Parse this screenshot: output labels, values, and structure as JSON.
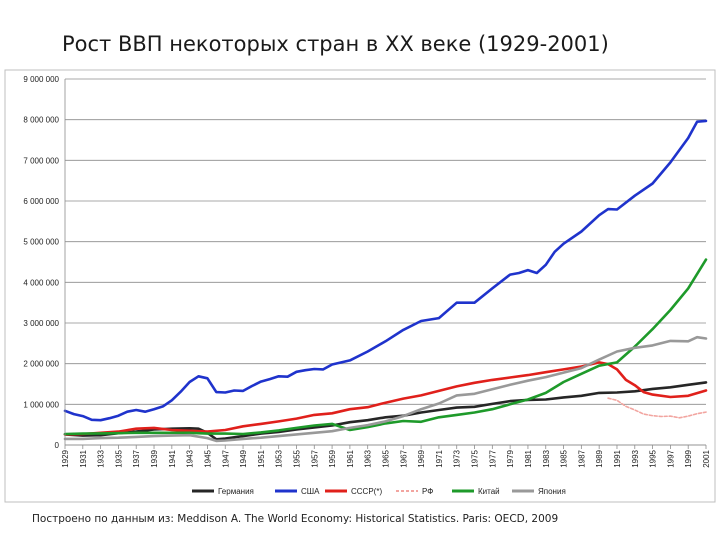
{
  "slide": {
    "title": "Рост ВВП некоторых стран в XX веке (1929-2001)",
    "source": "Построено по данным из: Meddison A. The World Economy: Historical Statistics. Paris: OECD, 2009"
  },
  "chart_data": {
    "type": "line",
    "title": "",
    "xlabel": "",
    "ylabel": "",
    "ylim": [
      0,
      9000000
    ],
    "yticks": [
      0,
      1000000,
      2000000,
      3000000,
      4000000,
      5000000,
      6000000,
      7000000,
      8000000,
      9000000
    ],
    "ytick_labels": [
      "0",
      "1 000 000",
      "2 000 000",
      "3 000 000",
      "4 000 000",
      "5 000 000",
      "6 000 000",
      "7 000 000",
      "8 000 000",
      "9 000 000"
    ],
    "xlim": [
      1929,
      2001
    ],
    "xticks": [
      1929,
      1931,
      1933,
      1935,
      1937,
      1939,
      1941,
      1943,
      1945,
      1947,
      1949,
      1951,
      1953,
      1955,
      1957,
      1959,
      1961,
      1963,
      1965,
      1967,
      1969,
      1971,
      1973,
      1975,
      1977,
      1979,
      1981,
      1983,
      1985,
      1987,
      1989,
      1991,
      1993,
      1995,
      1997,
      1999,
      2001
    ],
    "xtick_labels": [
      "1929",
      "1931",
      "1933",
      "1935",
      "1937",
      "1939",
      "1941",
      "1943",
      "1945",
      "1947",
      "1949",
      "1951",
      "1953",
      "1955",
      "1957",
      "1959",
      "1961",
      "1963",
      "1965",
      "1967",
      "1969",
      "1971",
      "1973",
      "1975",
      "1977",
      "1979",
      "1981",
      "1983",
      "1985",
      "1987",
      "1989",
      "1991",
      "1993",
      "1995",
      "1997",
      "1999",
      "2001"
    ],
    "grid": {
      "horizontal": true,
      "vertical": false
    },
    "legend_position": "bottom",
    "series": [
      {
        "name": "Германия",
        "color": "#262626",
        "dash": "solid",
        "points": [
          [
            1929,
            260000
          ],
          [
            1931,
            230000
          ],
          [
            1933,
            240000
          ],
          [
            1935,
            290000
          ],
          [
            1937,
            330000
          ],
          [
            1939,
            380000
          ],
          [
            1941,
            400000
          ],
          [
            1943,
            410000
          ],
          [
            1944,
            400000
          ],
          [
            1945,
            300000
          ],
          [
            1946,
            140000
          ],
          [
            1947,
            160000
          ],
          [
            1949,
            220000
          ],
          [
            1951,
            280000
          ],
          [
            1953,
            320000
          ],
          [
            1955,
            380000
          ],
          [
            1957,
            430000
          ],
          [
            1959,
            480000
          ],
          [
            1961,
            560000
          ],
          [
            1963,
            610000
          ],
          [
            1965,
            680000
          ],
          [
            1967,
            720000
          ],
          [
            1969,
            800000
          ],
          [
            1971,
            860000
          ],
          [
            1973,
            920000
          ],
          [
            1975,
            940000
          ],
          [
            1977,
            1010000
          ],
          [
            1979,
            1080000
          ],
          [
            1981,
            1110000
          ],
          [
            1983,
            1120000
          ],
          [
            1985,
            1170000
          ],
          [
            1987,
            1210000
          ],
          [
            1989,
            1280000
          ],
          [
            1991,
            1290000
          ],
          [
            1993,
            1320000
          ],
          [
            1995,
            1380000
          ],
          [
            1997,
            1420000
          ],
          [
            1999,
            1480000
          ],
          [
            2001,
            1540000
          ]
        ]
      },
      {
        "name": "США",
        "color": "#1f33cc",
        "dash": "solid",
        "points": [
          [
            1929,
            840000
          ],
          [
            1930,
            760000
          ],
          [
            1931,
            710000
          ],
          [
            1932,
            620000
          ],
          [
            1933,
            610000
          ],
          [
            1934,
            660000
          ],
          [
            1935,
            720000
          ],
          [
            1936,
            820000
          ],
          [
            1937,
            860000
          ],
          [
            1938,
            820000
          ],
          [
            1939,
            880000
          ],
          [
            1940,
            950000
          ],
          [
            1941,
            1100000
          ],
          [
            1942,
            1310000
          ],
          [
            1943,
            1550000
          ],
          [
            1944,
            1690000
          ],
          [
            1945,
            1640000
          ],
          [
            1946,
            1300000
          ],
          [
            1947,
            1290000
          ],
          [
            1948,
            1340000
          ],
          [
            1949,
            1330000
          ],
          [
            1950,
            1450000
          ],
          [
            1951,
            1560000
          ],
          [
            1952,
            1620000
          ],
          [
            1953,
            1690000
          ],
          [
            1954,
            1680000
          ],
          [
            1955,
            1800000
          ],
          [
            1956,
            1840000
          ],
          [
            1957,
            1870000
          ],
          [
            1958,
            1860000
          ],
          [
            1959,
            1980000
          ],
          [
            1961,
            2080000
          ],
          [
            1963,
            2300000
          ],
          [
            1965,
            2550000
          ],
          [
            1967,
            2830000
          ],
          [
            1969,
            3050000
          ],
          [
            1971,
            3120000
          ],
          [
            1973,
            3500000
          ],
          [
            1975,
            3500000
          ],
          [
            1977,
            3850000
          ],
          [
            1979,
            4190000
          ],
          [
            1980,
            4230000
          ],
          [
            1981,
            4300000
          ],
          [
            1982,
            4230000
          ],
          [
            1983,
            4430000
          ],
          [
            1984,
            4750000
          ],
          [
            1985,
            4950000
          ],
          [
            1987,
            5250000
          ],
          [
            1989,
            5650000
          ],
          [
            1990,
            5800000
          ],
          [
            1991,
            5790000
          ],
          [
            1993,
            6130000
          ],
          [
            1995,
            6430000
          ],
          [
            1997,
            6950000
          ],
          [
            1999,
            7550000
          ],
          [
            2000,
            7950000
          ],
          [
            2001,
            7970000
          ]
        ]
      },
      {
        "name": "СССР(*)",
        "color": "#e0201b",
        "dash": "solid",
        "points": [
          [
            1929,
            260000
          ],
          [
            1931,
            270000
          ],
          [
            1933,
            300000
          ],
          [
            1935,
            330000
          ],
          [
            1937,
            400000
          ],
          [
            1939,
            420000
          ],
          [
            1941,
            370000
          ],
          [
            1943,
            350000
          ],
          [
            1945,
            330000
          ],
          [
            1947,
            370000
          ],
          [
            1949,
            460000
          ],
          [
            1951,
            520000
          ],
          [
            1953,
            580000
          ],
          [
            1955,
            650000
          ],
          [
            1957,
            740000
          ],
          [
            1959,
            780000
          ],
          [
            1961,
            880000
          ],
          [
            1963,
            930000
          ],
          [
            1965,
            1040000
          ],
          [
            1967,
            1140000
          ],
          [
            1969,
            1220000
          ],
          [
            1971,
            1330000
          ],
          [
            1973,
            1440000
          ],
          [
            1975,
            1530000
          ],
          [
            1977,
            1600000
          ],
          [
            1979,
            1660000
          ],
          [
            1981,
            1720000
          ],
          [
            1983,
            1790000
          ],
          [
            1985,
            1860000
          ],
          [
            1987,
            1930000
          ],
          [
            1989,
            2030000
          ],
          [
            1990,
            1990000
          ],
          [
            1991,
            1860000
          ],
          [
            1992,
            1600000
          ],
          [
            1993,
            1470000
          ],
          [
            1994,
            1300000
          ],
          [
            1995,
            1240000
          ],
          [
            1997,
            1180000
          ],
          [
            1999,
            1210000
          ],
          [
            2001,
            1340000
          ]
        ]
      },
      {
        "name": "РФ",
        "color": "#f2a5a0",
        "dash": "dashed",
        "points": [
          [
            1990,
            1150000
          ],
          [
            1991,
            1100000
          ],
          [
            1992,
            950000
          ],
          [
            1993,
            860000
          ],
          [
            1994,
            760000
          ],
          [
            1995,
            720000
          ],
          [
            1996,
            700000
          ],
          [
            1997,
            710000
          ],
          [
            1998,
            670000
          ],
          [
            1999,
            710000
          ],
          [
            2000,
            770000
          ],
          [
            2001,
            810000
          ]
        ]
      },
      {
        "name": "Китай",
        "color": "#1e9a2a",
        "dash": "solid",
        "points": [
          [
            1929,
            270000
          ],
          [
            1931,
            280000
          ],
          [
            1933,
            285000
          ],
          [
            1935,
            290000
          ],
          [
            1937,
            300000
          ],
          [
            1939,
            300000
          ],
          [
            1941,
            300000
          ],
          [
            1943,
            300000
          ],
          [
            1945,
            280000
          ],
          [
            1947,
            280000
          ],
          [
            1949,
            270000
          ],
          [
            1951,
            310000
          ],
          [
            1953,
            360000
          ],
          [
            1955,
            420000
          ],
          [
            1957,
            480000
          ],
          [
            1959,
            520000
          ],
          [
            1961,
            370000
          ],
          [
            1963,
            440000
          ],
          [
            1965,
            530000
          ],
          [
            1967,
            590000
          ],
          [
            1969,
            570000
          ],
          [
            1971,
            680000
          ],
          [
            1973,
            740000
          ],
          [
            1975,
            800000
          ],
          [
            1977,
            880000
          ],
          [
            1979,
            1000000
          ],
          [
            1981,
            1120000
          ],
          [
            1983,
            1280000
          ],
          [
            1985,
            1550000
          ],
          [
            1987,
            1750000
          ],
          [
            1989,
            1950000
          ],
          [
            1991,
            2030000
          ],
          [
            1993,
            2420000
          ],
          [
            1995,
            2850000
          ],
          [
            1997,
            3320000
          ],
          [
            1999,
            3850000
          ],
          [
            2001,
            4560000
          ]
        ]
      },
      {
        "name": "Япония",
        "color": "#999999",
        "dash": "solid",
        "points": [
          [
            1929,
            150000
          ],
          [
            1931,
            150000
          ],
          [
            1933,
            170000
          ],
          [
            1935,
            180000
          ],
          [
            1937,
            200000
          ],
          [
            1939,
            220000
          ],
          [
            1941,
            230000
          ],
          [
            1943,
            240000
          ],
          [
            1945,
            170000
          ],
          [
            1946,
            100000
          ],
          [
            1947,
            110000
          ],
          [
            1949,
            150000
          ],
          [
            1951,
            180000
          ],
          [
            1953,
            220000
          ],
          [
            1955,
            260000
          ],
          [
            1957,
            300000
          ],
          [
            1959,
            340000
          ],
          [
            1961,
            420000
          ],
          [
            1963,
            490000
          ],
          [
            1965,
            580000
          ],
          [
            1967,
            710000
          ],
          [
            1969,
            880000
          ],
          [
            1971,
            1020000
          ],
          [
            1973,
            1220000
          ],
          [
            1975,
            1260000
          ],
          [
            1977,
            1370000
          ],
          [
            1979,
            1480000
          ],
          [
            1981,
            1580000
          ],
          [
            1983,
            1670000
          ],
          [
            1985,
            1780000
          ],
          [
            1987,
            1890000
          ],
          [
            1989,
            2100000
          ],
          [
            1991,
            2300000
          ],
          [
            1993,
            2390000
          ],
          [
            1995,
            2450000
          ],
          [
            1997,
            2560000
          ],
          [
            1999,
            2550000
          ],
          [
            2000,
            2650000
          ],
          [
            2001,
            2620000
          ]
        ]
      }
    ]
  }
}
